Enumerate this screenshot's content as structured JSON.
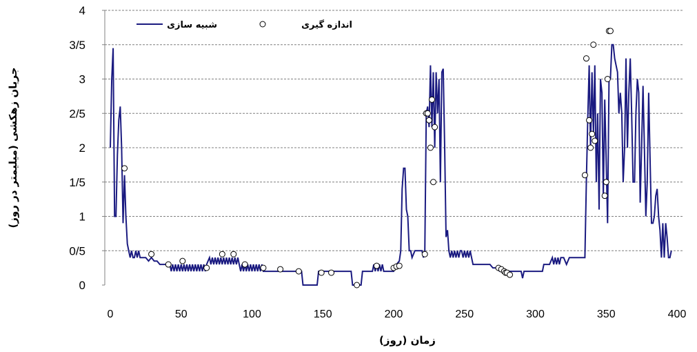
{
  "chart_data": {
    "type": "line",
    "xlabel": "زمان (روز)",
    "ylabel": "جریان زهکشی (میلیمتر در روز)",
    "xlim": [
      0,
      400
    ],
    "ylim": [
      0,
      4
    ],
    "x_ticks": [
      "0",
      "50",
      "100",
      "150",
      "200",
      "250",
      "300",
      "350",
      "400"
    ],
    "y_ticks": [
      "0",
      "0/5",
      "1",
      "1/5",
      "2",
      "2/5",
      "3",
      "3/5",
      "4"
    ],
    "grid": "horizontal dashed",
    "legend_position": "top-left",
    "colors": {
      "simulated": "#1a1a80",
      "measured_fill": "#ffffff",
      "measured_stroke": "#000000"
    },
    "series": [
      {
        "name": "شبیه سازی",
        "style": "line",
        "points": [
          [
            0,
            2.0
          ],
          [
            1,
            3.0
          ],
          [
            2,
            3.45
          ],
          [
            3,
            1.0
          ],
          [
            4,
            1.0
          ],
          [
            5,
            1.9
          ],
          [
            6,
            2.4
          ],
          [
            7,
            2.6
          ],
          [
            8,
            2.0
          ],
          [
            9,
            0.9
          ],
          [
            10,
            1.6
          ],
          [
            11,
            1.0
          ],
          [
            12,
            0.6
          ],
          [
            13,
            0.5
          ],
          [
            14,
            0.4
          ],
          [
            15,
            0.5
          ],
          [
            16,
            0.4
          ],
          [
            17,
            0.4
          ],
          [
            18,
            0.5
          ],
          [
            19,
            0.4
          ],
          [
            20,
            0.5
          ],
          [
            21,
            0.4
          ],
          [
            22,
            0.4
          ],
          [
            23,
            0.4
          ],
          [
            25,
            0.4
          ],
          [
            27,
            0.35
          ],
          [
            29,
            0.4
          ],
          [
            31,
            0.35
          ],
          [
            33,
            0.35
          ],
          [
            35,
            0.3
          ],
          [
            37,
            0.3
          ],
          [
            40,
            0.3
          ],
          [
            42,
            0.3
          ],
          [
            43,
            0.2
          ],
          [
            44,
            0.3
          ],
          [
            45,
            0.2
          ],
          [
            46,
            0.3
          ],
          [
            47,
            0.2
          ],
          [
            48,
            0.3
          ],
          [
            49,
            0.2
          ],
          [
            50,
            0.3
          ],
          [
            51,
            0.2
          ],
          [
            52,
            0.3
          ],
          [
            53,
            0.2
          ],
          [
            54,
            0.3
          ],
          [
            55,
            0.2
          ],
          [
            56,
            0.3
          ],
          [
            57,
            0.2
          ],
          [
            58,
            0.3
          ],
          [
            59,
            0.2
          ],
          [
            60,
            0.3
          ],
          [
            61,
            0.2
          ],
          [
            62,
            0.3
          ],
          [
            63,
            0.2
          ],
          [
            64,
            0.3
          ],
          [
            65,
            0.2
          ],
          [
            66,
            0.3
          ],
          [
            67,
            0.2
          ],
          [
            68,
            0.3
          ],
          [
            69,
            0.35
          ],
          [
            70,
            0.4
          ],
          [
            71,
            0.3
          ],
          [
            72,
            0.4
          ],
          [
            73,
            0.3
          ],
          [
            74,
            0.4
          ],
          [
            75,
            0.3
          ],
          [
            76,
            0.4
          ],
          [
            77,
            0.3
          ],
          [
            78,
            0.4
          ],
          [
            79,
            0.3
          ],
          [
            80,
            0.4
          ],
          [
            81,
            0.3
          ],
          [
            82,
            0.4
          ],
          [
            83,
            0.3
          ],
          [
            84,
            0.4
          ],
          [
            85,
            0.3
          ],
          [
            86,
            0.4
          ],
          [
            87,
            0.3
          ],
          [
            88,
            0.4
          ],
          [
            89,
            0.3
          ],
          [
            90,
            0.4
          ],
          [
            91,
            0.3
          ],
          [
            92,
            0.2
          ],
          [
            93,
            0.3
          ],
          [
            94,
            0.2
          ],
          [
            95,
            0.3
          ],
          [
            96,
            0.2
          ],
          [
            97,
            0.3
          ],
          [
            98,
            0.2
          ],
          [
            99,
            0.3
          ],
          [
            100,
            0.2
          ],
          [
            101,
            0.3
          ],
          [
            102,
            0.2
          ],
          [
            103,
            0.3
          ],
          [
            104,
            0.2
          ],
          [
            105,
            0.3
          ],
          [
            106,
            0.2
          ],
          [
            107,
            0.3
          ],
          [
            108,
            0.2
          ],
          [
            110,
            0.2
          ],
          [
            115,
            0.2
          ],
          [
            120,
            0.2
          ],
          [
            125,
            0.2
          ],
          [
            130,
            0.2
          ],
          [
            135,
            0.2
          ],
          [
            136,
            0.0
          ],
          [
            140,
            0.0
          ],
          [
            145,
            0.0
          ],
          [
            146,
            0.0
          ],
          [
            147,
            0.2
          ],
          [
            150,
            0.2
          ],
          [
            155,
            0.2
          ],
          [
            160,
            0.2
          ],
          [
            165,
            0.2
          ],
          [
            170,
            0.2
          ],
          [
            171,
            0.0
          ],
          [
            175,
            0.0
          ],
          [
            177,
            0.0
          ],
          [
            178,
            0.2
          ],
          [
            185,
            0.2
          ],
          [
            186,
            0.3
          ],
          [
            187,
            0.2
          ],
          [
            188,
            0.3
          ],
          [
            189,
            0.2
          ],
          [
            190,
            0.3
          ],
          [
            191,
            0.2
          ],
          [
            192,
            0.3
          ],
          [
            193,
            0.2
          ],
          [
            194,
            0.2
          ],
          [
            198,
            0.2
          ],
          [
            200,
            0.2
          ],
          [
            202,
            0.3
          ],
          [
            204,
            0.35
          ],
          [
            205,
            0.5
          ],
          [
            206,
            1.4
          ],
          [
            207,
            1.7
          ],
          [
            208,
            1.7
          ],
          [
            209,
            1.1
          ],
          [
            210,
            1.0
          ],
          [
            211,
            0.5
          ],
          [
            212,
            0.5
          ],
          [
            213,
            0.4
          ],
          [
            215,
            0.5
          ],
          [
            218,
            0.5
          ],
          [
            220,
            0.5
          ],
          [
            221,
            0.4
          ],
          [
            222,
            0.5
          ],
          [
            223,
            2.5
          ],
          [
            224,
            2.6
          ],
          [
            225,
            2.3
          ],
          [
            226,
            3.2
          ],
          [
            227,
            2.3
          ],
          [
            228,
            3.1
          ],
          [
            229,
            2.0
          ],
          [
            230,
            3.1
          ],
          [
            231,
            2.5
          ],
          [
            232,
            3.0
          ],
          [
            233,
            1.5
          ],
          [
            234,
            3.1
          ],
          [
            235,
            3.15
          ],
          [
            236,
            2.0
          ],
          [
            237,
            0.7
          ],
          [
            238,
            0.8
          ],
          [
            239,
            0.5
          ],
          [
            240,
            0.4
          ],
          [
            241,
            0.5
          ],
          [
            242,
            0.4
          ],
          [
            243,
            0.5
          ],
          [
            244,
            0.4
          ],
          [
            245,
            0.5
          ],
          [
            246,
            0.4
          ],
          [
            247,
            0.5
          ],
          [
            248,
            0.5
          ],
          [
            249,
            0.4
          ],
          [
            250,
            0.5
          ],
          [
            251,
            0.4
          ],
          [
            252,
            0.5
          ],
          [
            253,
            0.4
          ],
          [
            254,
            0.5
          ],
          [
            255,
            0.4
          ],
          [
            256,
            0.3
          ],
          [
            258,
            0.3
          ],
          [
            260,
            0.3
          ],
          [
            262,
            0.3
          ],
          [
            264,
            0.3
          ],
          [
            266,
            0.3
          ],
          [
            268,
            0.3
          ],
          [
            270,
            0.25
          ],
          [
            272,
            0.25
          ],
          [
            275,
            0.2
          ],
          [
            278,
            0.2
          ],
          [
            280,
            0.2
          ],
          [
            282,
            0.2
          ],
          [
            285,
            0.2
          ],
          [
            288,
            0.2
          ],
          [
            290,
            0.2
          ],
          [
            291,
            0.1
          ],
          [
            292,
            0.2
          ],
          [
            295,
            0.2
          ],
          [
            300,
            0.2
          ],
          [
            305,
            0.2
          ],
          [
            306,
            0.3
          ],
          [
            310,
            0.3
          ],
          [
            312,
            0.4
          ],
          [
            313,
            0.3
          ],
          [
            314,
            0.4
          ],
          [
            315,
            0.3
          ],
          [
            316,
            0.4
          ],
          [
            317,
            0.3
          ],
          [
            318,
            0.4
          ],
          [
            320,
            0.4
          ],
          [
            322,
            0.3
          ],
          [
            324,
            0.4
          ],
          [
            325,
            0.4
          ],
          [
            330,
            0.4
          ],
          [
            333,
            0.4
          ],
          [
            335,
            0.4
          ],
          [
            336,
            1.5
          ],
          [
            337,
            2.4
          ],
          [
            338,
            3.2
          ],
          [
            339,
            2.0
          ],
          [
            340,
            3.1
          ],
          [
            341,
            2.2
          ],
          [
            342,
            3.2
          ],
          [
            343,
            1.5
          ],
          [
            344,
            2.5
          ],
          [
            345,
            1.1
          ],
          [
            346,
            3.0
          ],
          [
            347,
            2.8
          ],
          [
            348,
            1.3
          ],
          [
            349,
            2.7
          ],
          [
            350,
            1.8
          ],
          [
            351,
            0.9
          ],
          [
            352,
            3.0
          ],
          [
            353,
            3.0
          ],
          [
            354,
            3.5
          ],
          [
            355,
            3.5
          ],
          [
            356,
            3.3
          ],
          [
            357,
            3.2
          ],
          [
            358,
            3.1
          ],
          [
            359,
            2.5
          ],
          [
            360,
            2.8
          ],
          [
            361,
            2.5
          ],
          [
            362,
            1.5
          ],
          [
            363,
            2.0
          ],
          [
            364,
            3.3
          ],
          [
            365,
            2.0
          ],
          [
            366,
            2.8
          ],
          [
            367,
            3.3
          ],
          [
            368,
            2.5
          ],
          [
            369,
            1.5
          ],
          [
            370,
            1.5
          ],
          [
            371,
            2.5
          ],
          [
            372,
            3.0
          ],
          [
            373,
            2.8
          ],
          [
            374,
            1.2
          ],
          [
            375,
            2.0
          ],
          [
            376,
            2.9
          ],
          [
            377,
            2.0
          ],
          [
            378,
            1.0
          ],
          [
            379,
            1.5
          ],
          [
            380,
            2.8
          ],
          [
            381,
            1.8
          ],
          [
            382,
            0.9
          ],
          [
            383,
            0.9
          ],
          [
            384,
            1.0
          ],
          [
            385,
            1.3
          ],
          [
            386,
            1.4
          ],
          [
            387,
            1.0
          ],
          [
            388,
            0.8
          ],
          [
            389,
            0.4
          ],
          [
            390,
            0.9
          ],
          [
            391,
            0.4
          ],
          [
            392,
            0.9
          ],
          [
            393,
            0.7
          ],
          [
            394,
            0.4
          ],
          [
            395,
            0.4
          ],
          [
            396,
            0.5
          ]
        ]
      },
      {
        "name": "اندازه گیری",
        "style": "markers",
        "points": [
          [
            10,
            1.7
          ],
          [
            29,
            0.45
          ],
          [
            41,
            0.3
          ],
          [
            51,
            0.35
          ],
          [
            68,
            0.25
          ],
          [
            79,
            0.45
          ],
          [
            87,
            0.45
          ],
          [
            95,
            0.3
          ],
          [
            108,
            0.25
          ],
          [
            120,
            0.23
          ],
          [
            133,
            0.2
          ],
          [
            149,
            0.18
          ],
          [
            156,
            0.18
          ],
          [
            174,
            0.0
          ],
          [
            188,
            0.28
          ],
          [
            200,
            0.25
          ],
          [
            202,
            0.27
          ],
          [
            204,
            0.28
          ],
          [
            222,
            0.45
          ],
          [
            223,
            2.5
          ],
          [
            224,
            2.5
          ],
          [
            225,
            2.4
          ],
          [
            226,
            2.0
          ],
          [
            227,
            2.7
          ],
          [
            228,
            1.5
          ],
          [
            229,
            2.3
          ],
          [
            274,
            0.25
          ],
          [
            276,
            0.23
          ],
          [
            278,
            0.2
          ],
          [
            279,
            0.18
          ],
          [
            280,
            0.18
          ],
          [
            282,
            0.15
          ],
          [
            335,
            1.6
          ],
          [
            336,
            3.3
          ],
          [
            338,
            2.4
          ],
          [
            339,
            2.0
          ],
          [
            340,
            2.2
          ],
          [
            341,
            3.5
          ],
          [
            342,
            2.1
          ],
          [
            349,
            1.3
          ],
          [
            350,
            1.5
          ],
          [
            351,
            3.0
          ],
          [
            352,
            3.7
          ],
          [
            353,
            3.7
          ]
        ]
      }
    ]
  }
}
